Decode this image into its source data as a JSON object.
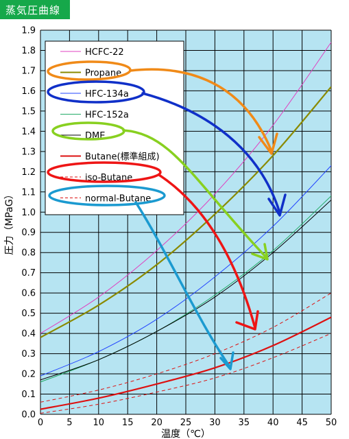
{
  "header": {
    "title": "蒸気圧曲線"
  },
  "colors": {
    "plot_bg": "#b6e4f2",
    "grid": "#000000",
    "header_bg": "#16a84a"
  },
  "chart_data": {
    "type": "line",
    "title": "蒸気圧曲線",
    "xlabel": "温度（℃）",
    "ylabel": "圧力（MPaG）",
    "xlim": [
      0,
      50
    ],
    "ylim": [
      0.0,
      1.9
    ],
    "xticks": [
      "0",
      "5",
      "10",
      "15",
      "20",
      "25",
      "30",
      "35",
      "40",
      "45",
      "50"
    ],
    "yticks": [
      "0.0",
      "0.1",
      "0.2",
      "0.3",
      "0.4",
      "0.5",
      "0.6",
      "0.7",
      "0.8",
      "0.9",
      "1.0",
      "1.1",
      "1.2",
      "1.3",
      "1.4",
      "1.5",
      "1.6",
      "1.7",
      "1.8",
      "1.9"
    ],
    "grid": true,
    "legend_position": "top-left",
    "series": [
      {
        "name": "HCFC-22",
        "color": "#e040c0",
        "dash": "solid",
        "width": 1,
        "x": [
          0,
          10,
          20,
          30,
          40,
          50
        ],
        "y": [
          0.4,
          0.58,
          0.81,
          1.09,
          1.43,
          1.84
        ]
      },
      {
        "name": "Propane",
        "color": "#8a8a00",
        "dash": "solid",
        "width": 2.2,
        "x": [
          0,
          10,
          20,
          30,
          40,
          50
        ],
        "y": [
          0.38,
          0.54,
          0.74,
          0.99,
          1.28,
          1.62
        ]
      },
      {
        "name": "HFC-134a",
        "color": "#2244ff",
        "dash": "solid",
        "width": 1,
        "x": [
          0,
          10,
          20,
          30,
          40,
          50
        ],
        "y": [
          0.19,
          0.31,
          0.47,
          0.68,
          0.93,
          1.23
        ]
      },
      {
        "name": "HFC-152a",
        "color": "#22aa66",
        "dash": "solid",
        "width": 1,
        "x": [
          0,
          10,
          20,
          30,
          40,
          50
        ],
        "y": [
          0.16,
          0.27,
          0.41,
          0.59,
          0.81,
          1.08
        ]
      },
      {
        "name": "DME",
        "color": "#000000",
        "dash": "solid",
        "width": 1,
        "x": [
          0,
          10,
          20,
          30,
          40,
          50
        ],
        "y": [
          0.17,
          0.27,
          0.41,
          0.58,
          0.8,
          1.06
        ]
      },
      {
        "name": "Butane(標準組成)",
        "color": "#dd1111",
        "dash": "solid",
        "width": 2.2,
        "x": [
          0,
          10,
          20,
          30,
          40,
          50
        ],
        "y": [
          0.025,
          0.08,
          0.15,
          0.23,
          0.34,
          0.48
        ]
      },
      {
        "name": "iso-Butane",
        "color": "#dd1111",
        "dash": "dashed",
        "width": 1,
        "x": [
          0,
          10,
          20,
          30,
          40,
          50
        ],
        "y": [
          0.06,
          0.12,
          0.2,
          0.3,
          0.43,
          0.6
        ]
      },
      {
        "name": "normal-Butane",
        "color": "#dd1111",
        "dash": "dashed",
        "width": 1,
        "x": [
          0,
          10,
          20,
          30,
          40,
          50
        ],
        "y": [
          0.005,
          0.05,
          0.11,
          0.18,
          0.28,
          0.4
        ]
      }
    ],
    "annotations": [
      {
        "type": "hand-drawn-arrow",
        "series": "Propane",
        "color": "#f08a18"
      },
      {
        "type": "hand-drawn-arrow",
        "series": "HFC-134a",
        "color": "#1030c8"
      },
      {
        "type": "hand-drawn-arrow",
        "series": "DME",
        "color": "#88d020"
      },
      {
        "type": "hand-drawn-arrow",
        "series": "iso-Butane",
        "color": "#ee1515"
      },
      {
        "type": "hand-drawn-arrow",
        "series": "normal-Butane",
        "color": "#1b9ad0"
      }
    ]
  }
}
